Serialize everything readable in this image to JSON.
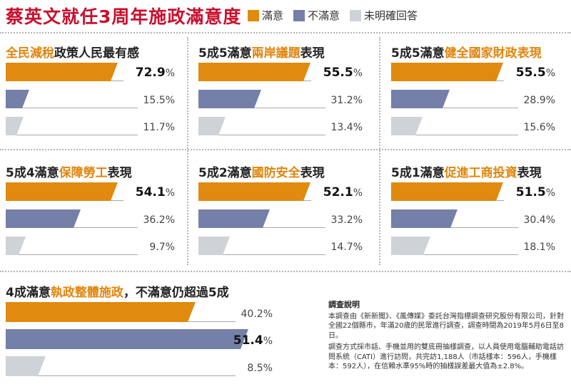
{
  "title": "蔡英文就任3周年施政滿意度",
  "legend": [
    {
      "label": "滿意",
      "color": "#e08a0f"
    },
    {
      "label": "不滿意",
      "color": "#7480a8"
    },
    {
      "label": "未明確回答",
      "color": "#cfd2d6"
    }
  ],
  "chart_data": [
    {
      "type": "bar",
      "title_parts": [
        "全民減稅政策人民最有感",
        ""
      ],
      "highlight": "全民減稅",
      "categories": [
        "滿意",
        "不滿意",
        "未明確回答"
      ],
      "values": [
        72.9,
        15.5,
        11.7
      ],
      "labels": [
        "72.9",
        "15.5%",
        "11.7%"
      ]
    },
    {
      "type": "bar",
      "title_parts": [
        "5成5滿意",
        "兩岸議題",
        "表現"
      ],
      "categories": [
        "滿意",
        "不滿意",
        "未明確回答"
      ],
      "values": [
        55.5,
        31.2,
        13.4
      ],
      "labels": [
        "55.5",
        "31.2%",
        "13.4%"
      ]
    },
    {
      "type": "bar",
      "title_parts": [
        "5成5滿意",
        "健全國家財政表現",
        ""
      ],
      "categories": [
        "滿意",
        "不滿意",
        "未明確回答"
      ],
      "values": [
        55.5,
        28.9,
        15.6
      ],
      "labels": [
        "55.5",
        "28.9%",
        "15.6%"
      ]
    },
    {
      "type": "bar",
      "title_parts": [
        "5成4滿意",
        "保障勞工",
        "表現"
      ],
      "categories": [
        "滿意",
        "不滿意",
        "未明確回答"
      ],
      "values": [
        54.1,
        36.2,
        9.7
      ],
      "labels": [
        "54.1",
        "36.2%",
        "9.7%"
      ]
    },
    {
      "type": "bar",
      "title_parts": [
        "5成2滿意",
        "國防安全",
        "表現"
      ],
      "categories": [
        "滿意",
        "不滿意",
        "未明確回答"
      ],
      "values": [
        52.1,
        33.2,
        14.7
      ],
      "labels": [
        "52.1",
        "33.2%",
        "14.7%"
      ]
    },
    {
      "type": "bar",
      "title_parts": [
        "5成1滿意",
        "促進工商投資",
        "表現"
      ],
      "categories": [
        "滿意",
        "不滿意",
        "未明確回答"
      ],
      "values": [
        51.5,
        30.4,
        18.1
      ],
      "labels": [
        "51.5",
        "30.4%",
        "18.1%"
      ]
    },
    {
      "type": "bar",
      "title_parts": [
        "4成滿意",
        "執政整體施政",
        "，不滿意仍超過5成"
      ],
      "categories": [
        "滿意",
        "不滿意",
        "未明確回答"
      ],
      "values": [
        40.2,
        51.4,
        8.5
      ],
      "labels": [
        "40.2%",
        "51.4",
        "8.5%"
      ]
    }
  ],
  "survey": {
    "heading": "調查說明",
    "para1": "本調查由《新新聞》、《風傳媒》委託台灣指標調查研究股份有限公司，針對全國22個縣市，年滿20歲的民眾進行調查，調查時間為2019年5月6日至8日。",
    "para2": "調查方式採市話、手機並用的雙底冊抽樣調查，以人員使用電腦輔助電話訪問系統（CATI）進行訪問，共完訪1,188人（市話樣本：596人，手機樣本：592人），在信賴水準95%時的抽樣誤差最大值為±2.8%。"
  }
}
